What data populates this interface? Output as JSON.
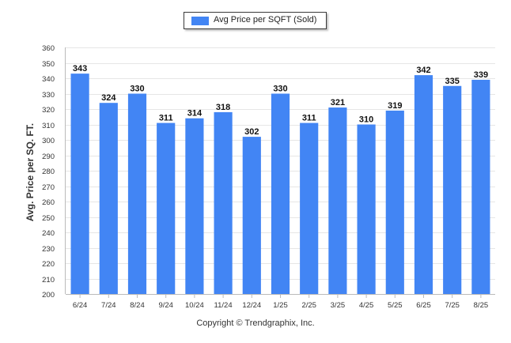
{
  "chart_data": {
    "type": "bar",
    "categories": [
      "6/24",
      "7/24",
      "8/24",
      "9/24",
      "10/24",
      "11/24",
      "12/24",
      "1/25",
      "2/25",
      "3/25",
      "4/25",
      "5/25",
      "6/25",
      "7/25",
      "8/25"
    ],
    "series": [
      {
        "name": "Avg Price per SQFT (Sold)",
        "values": [
          343,
          324,
          330,
          311,
          314,
          318,
          302,
          330,
          311,
          321,
          310,
          319,
          342,
          335,
          339
        ],
        "color": "#4285f4"
      }
    ],
    "title": "",
    "xlabel": "",
    "ylabel": "Avg. Price per SQ. FT.",
    "ylim": [
      200,
      360
    ],
    "yticks": [
      200,
      210,
      220,
      230,
      240,
      250,
      260,
      270,
      280,
      290,
      300,
      310,
      320,
      330,
      340,
      350,
      360
    ],
    "grid": true,
    "legend_position": "top-center",
    "data_labels": true
  },
  "footer": {
    "copyright": "Copyright © Trendgraphix, Inc."
  }
}
